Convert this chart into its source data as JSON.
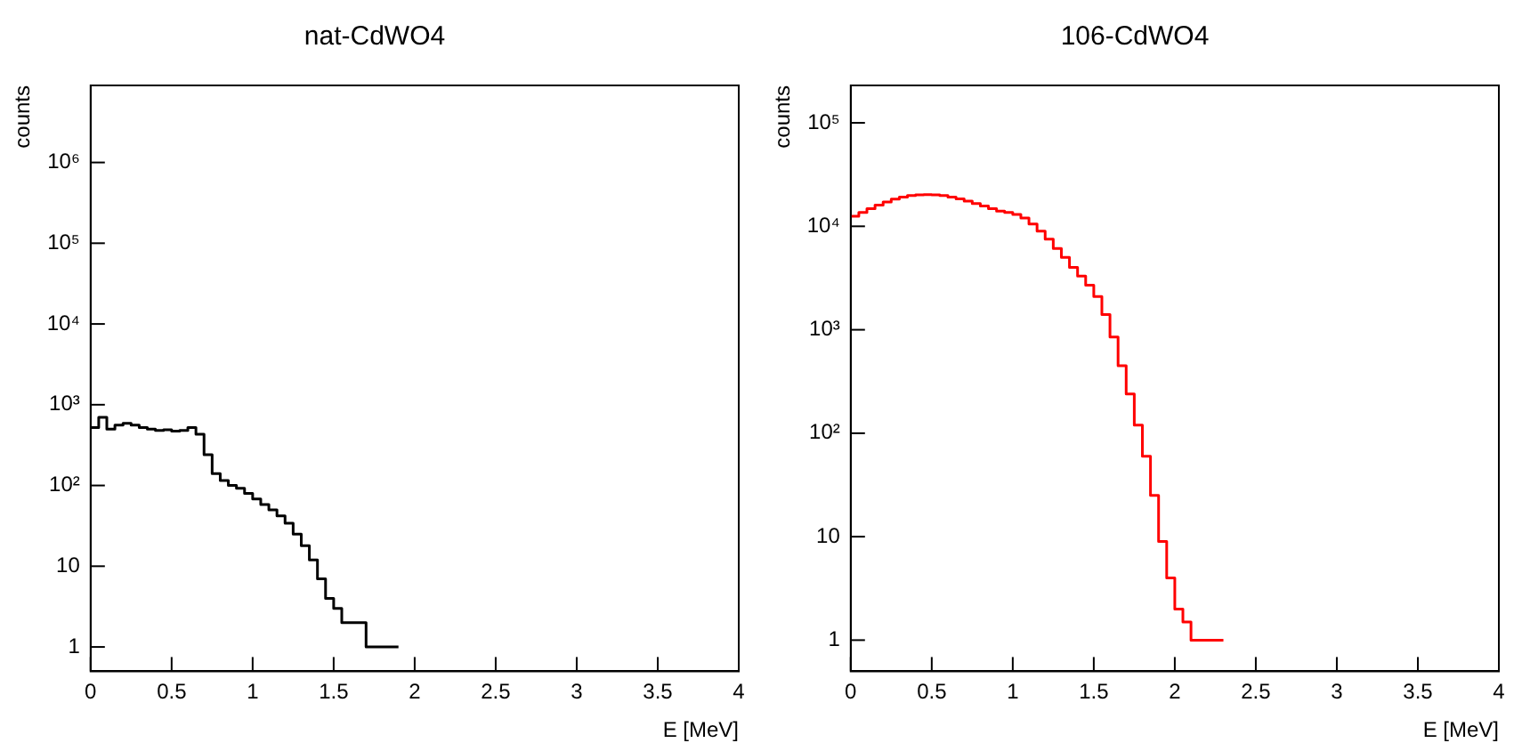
{
  "chart_data": [
    {
      "type": "histogram",
      "title": "nat-CdWO4",
      "xlabel": "E [MeV]",
      "ylabel": "counts",
      "color": "#000000",
      "log": "y",
      "grid": false,
      "legend": false,
      "bins": [
        0,
        0.05,
        0.1,
        0.15,
        0.2,
        0.25,
        0.3,
        0.35,
        0.4,
        0.45,
        0.5,
        0.55,
        0.6,
        0.65,
        0.7,
        0.75,
        0.8,
        0.85,
        0.9,
        0.95,
        1,
        1.05,
        1.1,
        1.15,
        1.2,
        1.25,
        1.3,
        1.35,
        1.4,
        1.45,
        1.5,
        1.55,
        1.6,
        1.65,
        1.7,
        1.75,
        1.8,
        1.85,
        1.9
      ],
      "values": [
        520,
        700,
        500,
        560,
        590,
        560,
        520,
        500,
        480,
        490,
        470,
        480,
        520,
        430,
        240,
        140,
        115,
        100,
        92,
        80,
        68,
        58,
        50,
        42,
        34,
        25,
        18,
        12,
        7,
        4,
        3,
        2,
        2,
        2,
        1,
        1,
        1,
        1
      ],
      "xlim": [
        0,
        4
      ],
      "xticks": [
        0,
        0.5,
        1,
        1.5,
        2,
        2.5,
        3,
        3.5,
        4
      ],
      "ylim": [
        0.5,
        9000000
      ],
      "yticks": [
        {
          "value": 1,
          "label": "1"
        },
        {
          "value": 10,
          "label": "10"
        },
        {
          "value": 100,
          "label": "10²"
        },
        {
          "value": 1000,
          "label": "10³"
        },
        {
          "value": 10000,
          "label": "10⁴"
        },
        {
          "value": 100000,
          "label": "10⁵"
        },
        {
          "value": 1000000,
          "label": "10⁶"
        }
      ]
    },
    {
      "type": "histogram",
      "title": "106-CdWO4",
      "xlabel": "E [MeV]",
      "ylabel": "counts",
      "color": "#ff0000",
      "log": "y",
      "grid": false,
      "legend": false,
      "bins": [
        0,
        0.05,
        0.1,
        0.15,
        0.2,
        0.25,
        0.3,
        0.35,
        0.4,
        0.45,
        0.5,
        0.55,
        0.6,
        0.65,
        0.7,
        0.75,
        0.8,
        0.85,
        0.9,
        0.95,
        1,
        1.05,
        1.1,
        1.15,
        1.2,
        1.25,
        1.3,
        1.35,
        1.4,
        1.45,
        1.5,
        1.55,
        1.6,
        1.65,
        1.7,
        1.75,
        1.8,
        1.85,
        1.9,
        1.95,
        2,
        2.05,
        2.1,
        2.15,
        2.2,
        2.25,
        2.3
      ],
      "values": [
        12500,
        13600,
        14800,
        16000,
        17200,
        18300,
        19200,
        19800,
        20100,
        20200,
        20100,
        19800,
        19200,
        18400,
        17500,
        16600,
        15700,
        14800,
        14000,
        13600,
        13000,
        12000,
        10500,
        9000,
        7500,
        6100,
        5000,
        4000,
        3300,
        2700,
        2100,
        1400,
        850,
        450,
        240,
        120,
        60,
        25,
        9,
        4,
        2,
        1.5,
        1,
        1,
        1,
        1
      ],
      "xlim": [
        0,
        4
      ],
      "xticks": [
        0,
        0.5,
        1,
        1.5,
        2,
        2.5,
        3,
        3.5,
        4
      ],
      "ylim": [
        0.5,
        230000
      ],
      "yticks": [
        {
          "value": 1,
          "label": "1"
        },
        {
          "value": 10,
          "label": "10"
        },
        {
          "value": 100,
          "label": "10²"
        },
        {
          "value": 1000,
          "label": "10³"
        },
        {
          "value": 10000,
          "label": "10⁴"
        },
        {
          "value": 100000,
          "label": "10⁵"
        }
      ]
    }
  ]
}
